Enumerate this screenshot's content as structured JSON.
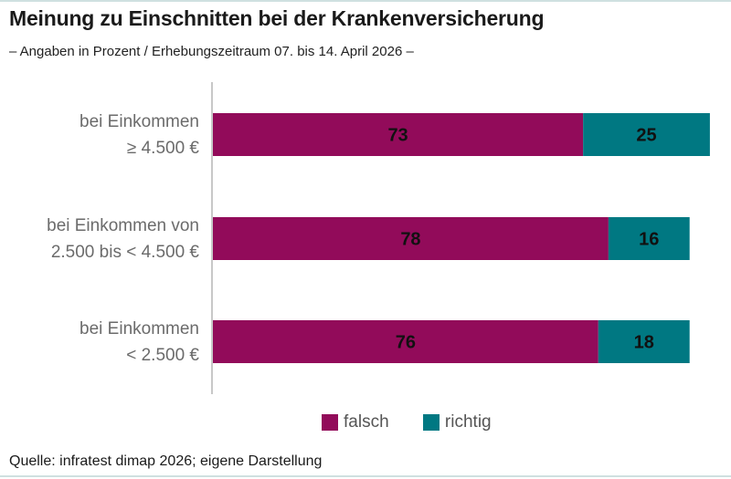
{
  "title": "Meinung zu Einschnitten bei der Krankenversicherung",
  "subtitle": "– Angaben in Prozent / Erhebungszeitraum 07. bis 14. April 2026 –",
  "source": "Quelle: infratest dimap 2026; eigene Darstellung",
  "colors": {
    "falsch": "#920b5a",
    "richtig": "#007882",
    "axis": "#c8c8c8"
  },
  "chart_data": {
    "type": "bar",
    "orientation": "horizontal",
    "stacked": true,
    "categories": [
      [
        "bei Einkommen",
        "≥ 4.500 €"
      ],
      [
        "bei Einkommen von",
        "2.500 bis < 4.500 €"
      ],
      [
        "bei Einkommen",
        "< 2.500 €"
      ]
    ],
    "series": [
      {
        "name": "falsch",
        "values": [
          73,
          78,
          76
        ]
      },
      {
        "name": "richtig",
        "values": [
          25,
          16,
          18
        ]
      }
    ],
    "xlim": [
      0,
      100
    ],
    "grid": false,
    "legend": "bottom"
  }
}
